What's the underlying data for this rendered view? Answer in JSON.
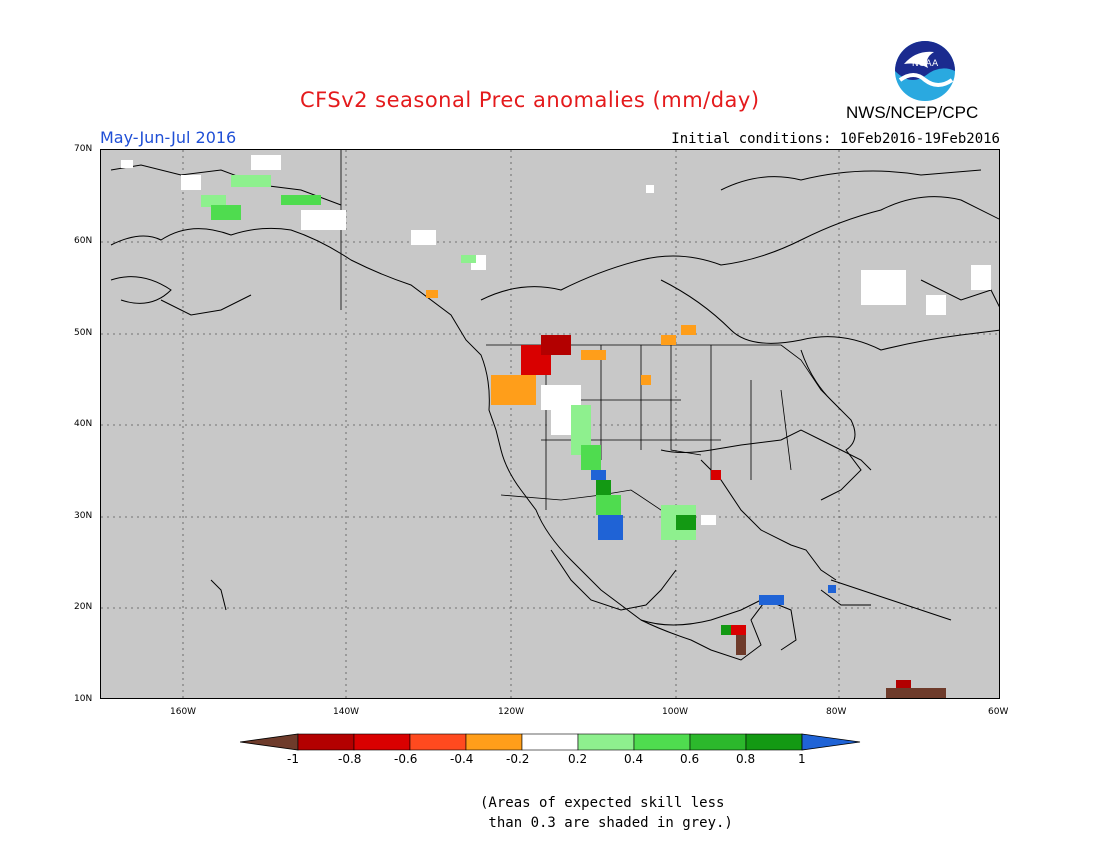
{
  "title": "CFSv2 seasonal Prec anomalies (mm/day)",
  "org": "NWS/NCEP/CPC",
  "logo_text": "NOAA",
  "period": "May-Jun-Jul 2016",
  "initial_conditions": "Initial conditions: 10Feb2016-19Feb2016",
  "lat_labels": [
    "70N",
    "60N",
    "50N",
    "40N",
    "30N",
    "20N",
    "10N"
  ],
  "lon_labels": [
    "160W",
    "140W",
    "120W",
    "100W",
    "80W",
    "60W"
  ],
  "colorbar": {
    "labels": [
      "-1",
      "-0.8",
      "-0.6",
      "-0.4",
      "-0.2",
      "0.2",
      "0.4",
      "0.6",
      "0.8",
      "1"
    ],
    "colors": [
      "#6e3b2b",
      "#b30000",
      "#d90000",
      "#ff4a1f",
      "#ff9e1a",
      "#ffffff",
      "#8ef08e",
      "#4fdc4f",
      "#2cb82c",
      "#139913",
      "#1f63d6"
    ]
  },
  "note_line1": "(Areas of expected skill less",
  "note_line2": " than 0.3 are shaded in grey.)",
  "colors": {
    "background_map": "#c8c8c8",
    "title": "#e41a1c",
    "period": "#1f4fd6"
  }
}
